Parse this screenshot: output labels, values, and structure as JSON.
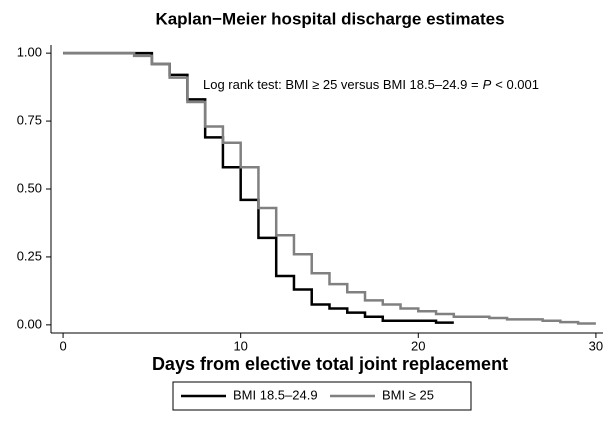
{
  "chart_data": {
    "type": "step",
    "step": "post",
    "title": "Kaplan−Meier hospital discharge estimates",
    "x_label": "Days from elective total joint replacement",
    "annotation": [
      "Log rank test: BMI ≥ 25 versus BMI 18.5–24.9 =",
      "P",
      "< 0.001"
    ],
    "xlim": [
      -0.68,
      30.4
    ],
    "ylim": [
      -0.03,
      1.03
    ],
    "xticks": [
      0,
      10,
      20,
      30
    ],
    "yticks": [
      {
        "value": 0,
        "label": "0.00"
      },
      {
        "value": 0.25,
        "label": "0.25"
      },
      {
        "value": 0.5,
        "label": "0.50"
      },
      {
        "value": 0.75,
        "label": "0.75"
      },
      {
        "value": 1,
        "label": "1.00"
      }
    ],
    "grid": false,
    "legend": "bottom",
    "series": [
      {
        "name": "BMI 18.5–24.9",
        "color": "#000000",
        "x": [
          0,
          5,
          6,
          7,
          8,
          9,
          10,
          11,
          12,
          13,
          14,
          15,
          16,
          17,
          18,
          21,
          22
        ],
        "values": [
          1.0,
          0.96,
          0.92,
          0.83,
          0.69,
          0.58,
          0.46,
          0.32,
          0.18,
          0.13,
          0.075,
          0.06,
          0.045,
          0.03,
          0.015,
          0.008,
          0.008
        ]
      },
      {
        "name": "BMI ≥ 25",
        "color": "#808080",
        "x": [
          0,
          4,
          5,
          6,
          7,
          8,
          9,
          10,
          11,
          12,
          13,
          14,
          15,
          16,
          17,
          18,
          19,
          20,
          21,
          22,
          24,
          25,
          27,
          28,
          29,
          30
        ],
        "values": [
          1.0,
          0.99,
          0.96,
          0.91,
          0.82,
          0.73,
          0.67,
          0.58,
          0.43,
          0.33,
          0.26,
          0.19,
          0.15,
          0.12,
          0.09,
          0.075,
          0.06,
          0.05,
          0.04,
          0.03,
          0.025,
          0.02,
          0.015,
          0.01,
          0.005,
          0.005
        ]
      }
    ]
  }
}
